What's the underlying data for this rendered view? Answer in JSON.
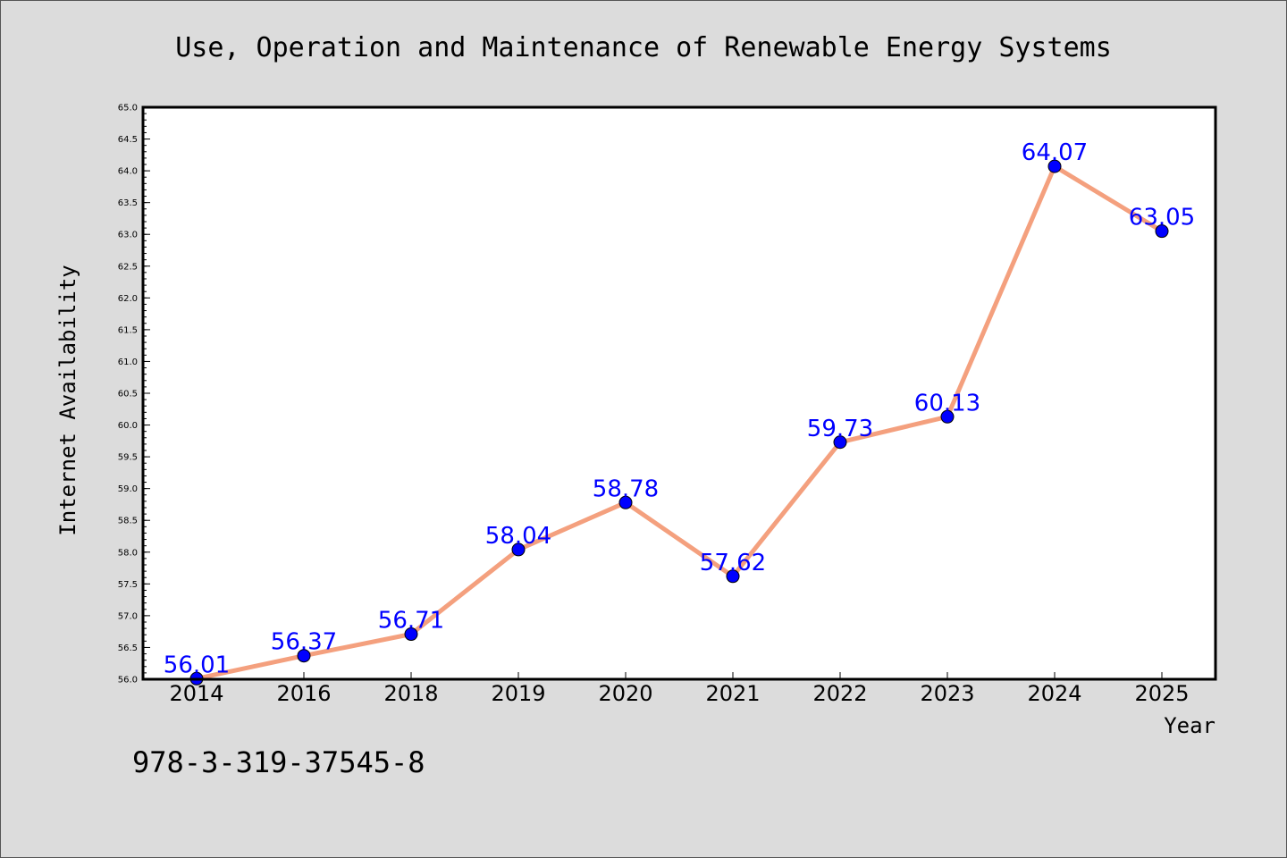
{
  "chart_data": {
    "type": "line",
    "title": "Use, Operation and Maintenance of Renewable Energy Systems",
    "xlabel": "Year",
    "ylabel": "Internet Availability",
    "categories": [
      "2014",
      "2016",
      "2018",
      "2019",
      "2020",
      "2021",
      "2022",
      "2023",
      "2024",
      "2025"
    ],
    "series": [
      {
        "values": [
          56.01,
          56.37,
          56.71,
          58.04,
          58.78,
          57.62,
          59.73,
          60.13,
          64.07,
          63.05
        ],
        "data_labels": [
          "56.01",
          "56.37",
          "56.71",
          "58.04",
          "58.78",
          "57.62",
          "59.73",
          "60.13",
          "64.07",
          "63.05"
        ]
      }
    ],
    "ylim": [
      56.0,
      65.0
    ],
    "yticks": [
      "56.0",
      "56.5",
      "57.0",
      "57.5",
      "58.0",
      "58.5",
      "59.0",
      "59.5",
      "60.0",
      "60.5",
      "61.0",
      "61.5",
      "62.0",
      "62.5",
      "63.0",
      "63.5",
      "64.0",
      "64.5",
      "65.0"
    ],
    "grid": false,
    "colors": {
      "line": "#f4a07e",
      "marker": "#0000ff",
      "label": "#0000ff",
      "plot_bg": "#ffffff",
      "page_bg": "#dcdcdc"
    }
  },
  "footnote": "978-3-319-37545-8"
}
